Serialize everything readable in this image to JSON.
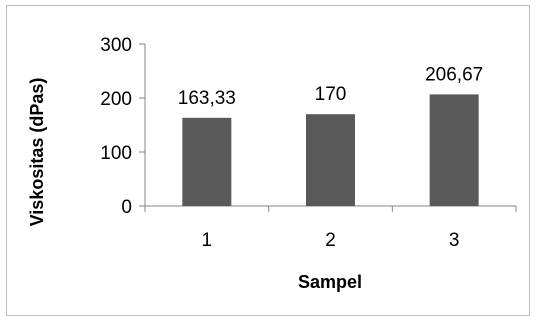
{
  "chart_data": {
    "type": "bar",
    "title": "",
    "xlabel": "Sampel",
    "ylabel": "Viskositas (dPas)",
    "categories": [
      "1",
      "2",
      "3"
    ],
    "values": [
      163.33,
      170,
      206.67
    ],
    "data_labels": [
      "163,33",
      "170",
      "206,67"
    ],
    "ylim": [
      0,
      300
    ],
    "yticks": [
      0,
      100,
      200,
      300
    ],
    "ytick_labels": [
      "0",
      "100",
      "200",
      "300"
    ],
    "grid": false,
    "legend": "none",
    "bar_color": "#595959",
    "axis_color": "#868686"
  }
}
